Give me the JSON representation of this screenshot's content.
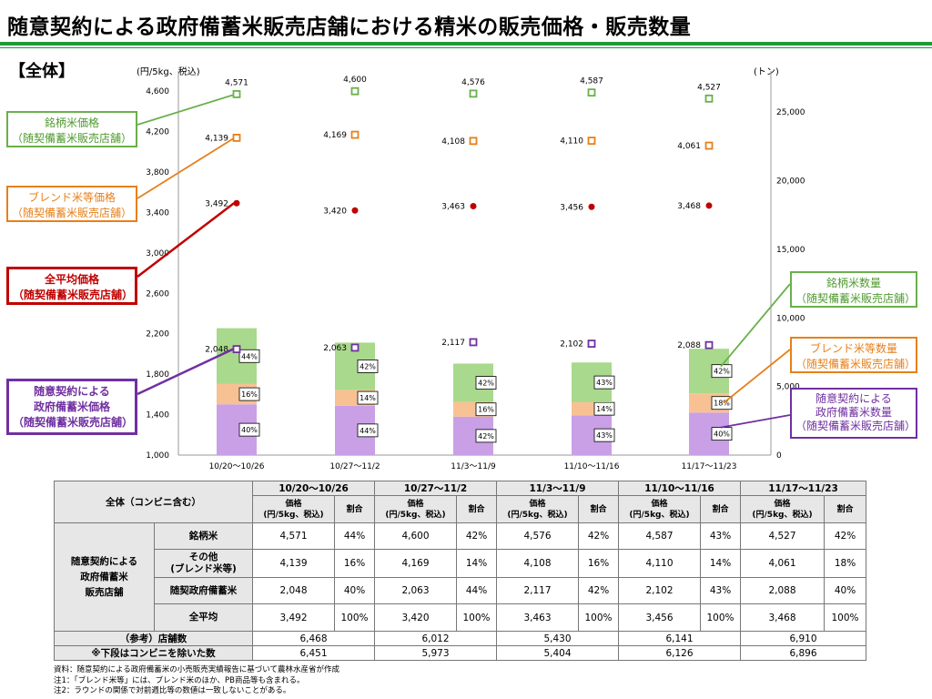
{
  "page": {
    "title": "随意契約による政府備蓄米販売店舗における精米の販売価格・販売数量",
    "section": "【全体】"
  },
  "colors": {
    "rule": "#1f9a3a",
    "brand": "#6ab04c",
    "blend": "#e6801a",
    "avg": "#c00000",
    "gov": "#7030a0",
    "bar_brand": "#a9d98c",
    "bar_blend": "#f8c193",
    "bar_gov": "#c9a0e6"
  },
  "chart_data": {
    "type": "bar",
    "categories": [
      "10/20～10/26",
      "10/27～11/2",
      "11/3～11/9",
      "11/10～11/16",
      "11/17～11/23"
    ],
    "left_axis": {
      "label": "(円/5kg、税込)",
      "ylim": [
        1000,
        4800
      ],
      "ticks": [
        1000,
        1400,
        1800,
        2200,
        2600,
        3000,
        3400,
        3800,
        4200,
        4600
      ]
    },
    "right_axis": {
      "label": "(トン)",
      "ylim": [
        0,
        28000
      ],
      "ticks": [
        0,
        5000,
        10000,
        15000,
        20000,
        25000
      ]
    },
    "price_series": [
      {
        "name": "銘柄米価格",
        "key": "brand",
        "values": [
          4571,
          4600,
          4576,
          4587,
          4527
        ]
      },
      {
        "name": "ブレンド米等価格",
        "key": "blend",
        "values": [
          4139,
          4169,
          4108,
          4110,
          4061
        ]
      },
      {
        "name": "全平均価格",
        "key": "avg",
        "values": [
          3492,
          3420,
          3463,
          3456,
          3468
        ]
      },
      {
        "name": "随意契約による政府備蓄米価格",
        "key": "gov",
        "values": [
          2048,
          2063,
          2117,
          2102,
          2088
        ]
      }
    ],
    "quantity_series": [
      {
        "name": "随意契約による政府備蓄米数量",
        "key": "gov",
        "values": [
          3700,
          3600,
          2800,
          2900,
          3100
        ],
        "pct": [
          "40%",
          "44%",
          "42%",
          "43%",
          "40%"
        ]
      },
      {
        "name": "ブレンド米等数量",
        "key": "blend",
        "values": [
          1480,
          1150,
          1070,
          950,
          1400
        ],
        "pct": [
          "16%",
          "14%",
          "16%",
          "14%",
          "18%"
        ]
      },
      {
        "name": "銘柄米数量",
        "key": "brand",
        "values": [
          4070,
          3450,
          2800,
          2900,
          3250
        ],
        "pct": [
          "44%",
          "42%",
          "42%",
          "43%",
          "42%"
        ]
      }
    ]
  },
  "callouts": {
    "brand_price": [
      "銘柄米価格",
      "（随契備蓄米販売店舗）"
    ],
    "blend_price": [
      "ブレンド米等価格",
      "（随契備蓄米販売店舗）"
    ],
    "avg_price": [
      "全平均価格",
      "（随契備蓄米販売店舗）"
    ],
    "gov_price": [
      "随意契約による",
      "政府備蓄米価格",
      "（随契備蓄米販売店舗）"
    ],
    "brand_qty": [
      "銘柄米数量",
      "（随契備蓄米販売店舗）"
    ],
    "blend_qty": [
      "ブレンド米等数量",
      "（随契備蓄米販売店舗）"
    ],
    "gov_qty": [
      "随意契約による",
      "政府備蓄米数量",
      "（随契備蓄米販売店舗）"
    ]
  },
  "table": {
    "corner": "全体（コンビニ含む）",
    "weeks": [
      "10/20～10/26",
      "10/27～11/2",
      "11/3～11/9",
      "11/10～11/16",
      "11/17～11/23"
    ],
    "price_head": "価格\n(円/5kg、税込)",
    "share_head": "割合",
    "group_label": "随意契約による\n政府備蓄米\n販売店舗",
    "rows": [
      {
        "label": "銘柄米",
        "prices": [
          "4,571",
          "4,600",
          "4,576",
          "4,587",
          "4,527"
        ],
        "shares": [
          "44%",
          "42%",
          "42%",
          "43%",
          "42%"
        ]
      },
      {
        "label": "その他\n(ブレンド米等)",
        "prices": [
          "4,139",
          "4,169",
          "4,108",
          "4,110",
          "4,061"
        ],
        "shares": [
          "16%",
          "14%",
          "16%",
          "14%",
          "18%"
        ]
      },
      {
        "label": "随契政府備蓄米",
        "prices": [
          "2,048",
          "2,063",
          "2,117",
          "2,102",
          "2,088"
        ],
        "shares": [
          "40%",
          "44%",
          "42%",
          "43%",
          "40%"
        ]
      },
      {
        "label": "全平均",
        "prices": [
          "3,492",
          "3,420",
          "3,463",
          "3,456",
          "3,468"
        ],
        "shares": [
          "100%",
          "100%",
          "100%",
          "100%",
          "100%"
        ]
      }
    ],
    "stores_label": "（参考）店舗数",
    "stores": [
      "6,468",
      "6,012",
      "5,430",
      "6,141",
      "6,910"
    ],
    "stores_excl_label": "※下段はコンビニを除いた数",
    "stores_excl": [
      "6,451",
      "5,973",
      "5,404",
      "6,126",
      "6,896"
    ]
  },
  "notes": [
    "資料：随意契約による政府備蓄米の小売販売実績報告に基づいて農林水産省が作成",
    "注1：「ブレンド米等」には、ブレンド米のほか、PB商品等も含まれる。",
    "注2：ラウンドの関係で対前週比等の数値は一致しないことがある。"
  ]
}
